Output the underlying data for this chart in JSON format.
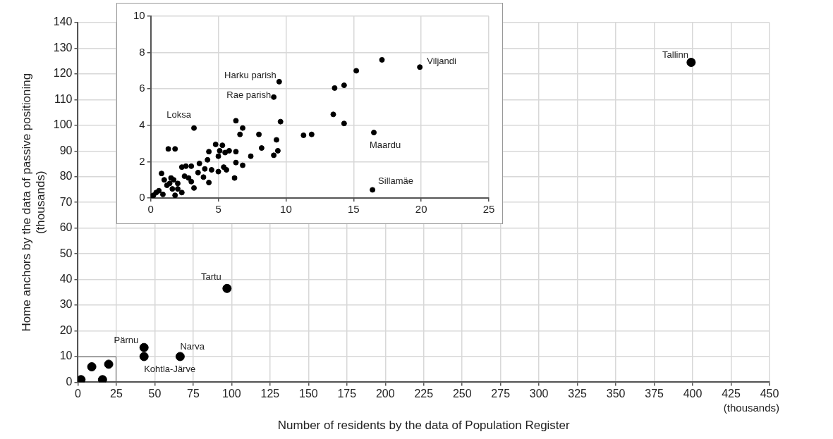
{
  "chart_data": [
    {
      "type": "scatter",
      "xlabel": "Number of residents by the data of Population Register",
      "ylabel": "Home anchors by the data of passive positioning\n(thousands)",
      "xlim": [
        0,
        450
      ],
      "ylim": [
        0,
        140
      ],
      "xticks": [
        0,
        25,
        50,
        75,
        100,
        125,
        150,
        175,
        200,
        225,
        250,
        275,
        300,
        325,
        350,
        375,
        400,
        425,
        450
      ],
      "yticks": [
        0,
        10,
        20,
        30,
        40,
        50,
        60,
        70,
        80,
        90,
        100,
        110,
        120,
        130,
        140
      ],
      "grid": true,
      "legend": false,
      "marker": "circle",
      "series": [
        {
          "color": "#000000",
          "x": [
            399,
            97,
            43,
            43,
            66.5,
            20,
            16,
            9,
            2
          ],
          "values": [
            124.5,
            36.5,
            13.5,
            10,
            10,
            7,
            1,
            6,
            1
          ]
        }
      ],
      "annotations": [
        {
          "text": "Tallinn",
          "x": 399,
          "y": 124.5
        },
        {
          "text": "Tartu",
          "x": 97,
          "y": 36.5
        },
        {
          "text": "Pärnu",
          "x": 43,
          "y": 13.5
        },
        {
          "text": "Kohtla-Järve",
          "x": 43,
          "y": 10
        },
        {
          "text": "Narva",
          "x": 66.5,
          "y": 10
        },
        "(thousands)"
      ]
    },
    {
      "type": "scatter",
      "xlim": [
        0,
        25
      ],
      "ylim": [
        0,
        10
      ],
      "xticks": [
        0,
        5,
        10,
        15,
        20,
        25
      ],
      "yticks": [
        0,
        2,
        4,
        6,
        8,
        10
      ],
      "grid": true,
      "legend": false,
      "marker": "circle",
      "series": [
        {
          "color": "#000000",
          "x": [
            19.9,
            17.1,
            15.2,
            14.3,
            13.6,
            9.5,
            9.1,
            13.5,
            14.3,
            16.5,
            16.4,
            9.6,
            11.3,
            11.9,
            9.3,
            9.4,
            9.1,
            8.0,
            8.2,
            7.4,
            6.8,
            6.3,
            6.3,
            6.3,
            6.8,
            6.6,
            3.2,
            1.3,
            1.8,
            4.3,
            4.8,
            5.3,
            5.1,
            5.5,
            5.8,
            5.0,
            4.2,
            3.6,
            3.0,
            2.6,
            2.3,
            4.0,
            4.5,
            5.4,
            5.6,
            5.0,
            3.5,
            3.9,
            4.3,
            6.2,
            2.8,
            3.2,
            2.3,
            2.0,
            1.5,
            1.0,
            0.8,
            1.2,
            1.6,
            0.6,
            0.4,
            0.2,
            0.1,
            0.9,
            1.8,
            1.4,
            2.5,
            3.0,
            1.7,
            2.0
          ],
          "values": [
            7.2,
            7.6,
            7.0,
            6.2,
            6.05,
            6.4,
            5.55,
            4.6,
            4.1,
            3.6,
            0.45,
            4.2,
            3.45,
            3.5,
            3.2,
            2.6,
            2.35,
            3.5,
            2.75,
            2.3,
            1.8,
            1.95,
            2.55,
            4.25,
            3.85,
            3.5,
            3.85,
            2.7,
            2.7,
            2.55,
            2.95,
            2.9,
            2.6,
            2.5,
            2.6,
            2.3,
            2.1,
            1.9,
            1.75,
            1.75,
            1.7,
            1.6,
            1.55,
            1.7,
            1.55,
            1.45,
            1.4,
            1.15,
            0.85,
            1.1,
            1.1,
            0.55,
            0.3,
            0.8,
            1.1,
            1.0,
            1.35,
            0.7,
            0.5,
            0.4,
            0.3,
            0.15,
            0.1,
            0.2,
            0.15,
            0.8,
            1.2,
            0.9,
            1.0,
            0.5
          ]
        }
      ],
      "annotations": [
        {
          "text": "Viljandi",
          "x": 19.9,
          "y": 7.2
        },
        {
          "text": "Harku parish",
          "x": 9.5,
          "y": 6.4
        },
        {
          "text": "Rae parish",
          "x": 9.1,
          "y": 5.55
        },
        {
          "text": "Loksa",
          "x": 3.2,
          "y": 3.85
        },
        {
          "text": "Maardu",
          "x": 16.5,
          "y": 3.6
        },
        {
          "text": "Sillamäe",
          "x": 16.4,
          "y": 0.45
        }
      ]
    }
  ]
}
